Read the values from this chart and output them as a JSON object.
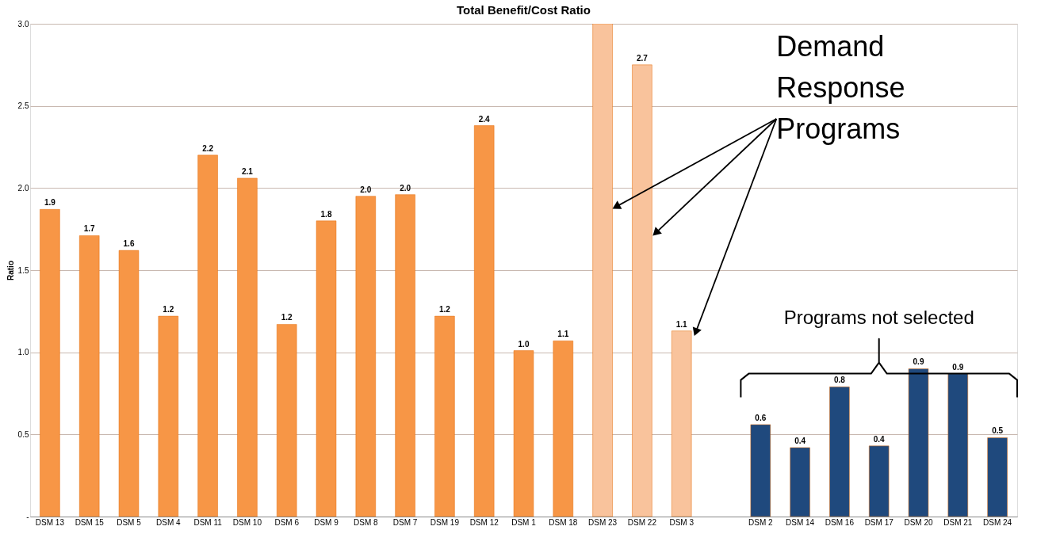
{
  "chart_data": {
    "type": "bar",
    "title": "Total Benefit/Cost Ratio",
    "ylabel": "Ratio",
    "categories": [
      "DSM 13",
      "DSM 15",
      "DSM 5",
      "DSM 4",
      "DSM 11",
      "DSM 10",
      "DSM 6",
      "DSM 9",
      "DSM 8",
      "DSM 7",
      "DSM 19",
      "DSM 12",
      "DSM 1",
      "DSM 18",
      "DSM 23",
      "DSM 22",
      "DSM 3",
      null,
      "DSM 2",
      "DSM 14",
      "DSM 16",
      "DSM 17",
      "DSM 20",
      "DSM 21",
      "DSM 24"
    ],
    "values": [
      1.87,
      1.71,
      1.62,
      1.22,
      2.2,
      2.06,
      1.17,
      1.8,
      1.95,
      1.96,
      1.22,
      2.38,
      1.01,
      1.07,
      3.0,
      2.75,
      1.13,
      null,
      0.56,
      0.42,
      0.79,
      0.43,
      0.9,
      0.87,
      0.48
    ],
    "value_labels": [
      "1.9",
      "1.7",
      "1.6",
      "1.2",
      "2.2",
      "2.1",
      "1.2",
      "1.8",
      "2.0",
      "2.0",
      "1.2",
      "2.4",
      "1.0",
      "1.1",
      null,
      "2.7",
      "1.1",
      null,
      "0.6",
      "0.4",
      "0.8",
      "0.4",
      "0.9",
      "0.9",
      "0.5"
    ],
    "colors": [
      "#f79646",
      "#f79646",
      "#f79646",
      "#f79646",
      "#f79646",
      "#f79646",
      "#f79646",
      "#f79646",
      "#f79646",
      "#f79646",
      "#f79646",
      "#f79646",
      "#f79646",
      "#f79646",
      "#f9c39c",
      "#f9c39c",
      "#f9c39c",
      "#f79646",
      "#1f497d",
      "#1f497d",
      "#1f497d",
      "#1f497d",
      "#1f497d",
      "#1f497d",
      "#1f497d"
    ],
    "ylim": [
      0,
      3
    ],
    "yticks": [
      {
        "value": 0,
        "label": "-"
      },
      {
        "value": 0.5,
        "label": "0.5"
      },
      {
        "value": 1,
        "label": "1.0"
      },
      {
        "value": 1.5,
        "label": "1.5"
      },
      {
        "value": 2,
        "label": "2.0"
      },
      {
        "value": 2.5,
        "label": "2.5"
      },
      {
        "value": 3,
        "label": "3.0"
      }
    ],
    "grid": "y",
    "annotations": [
      "Demand Response Programs",
      "Programs not selected"
    ]
  }
}
